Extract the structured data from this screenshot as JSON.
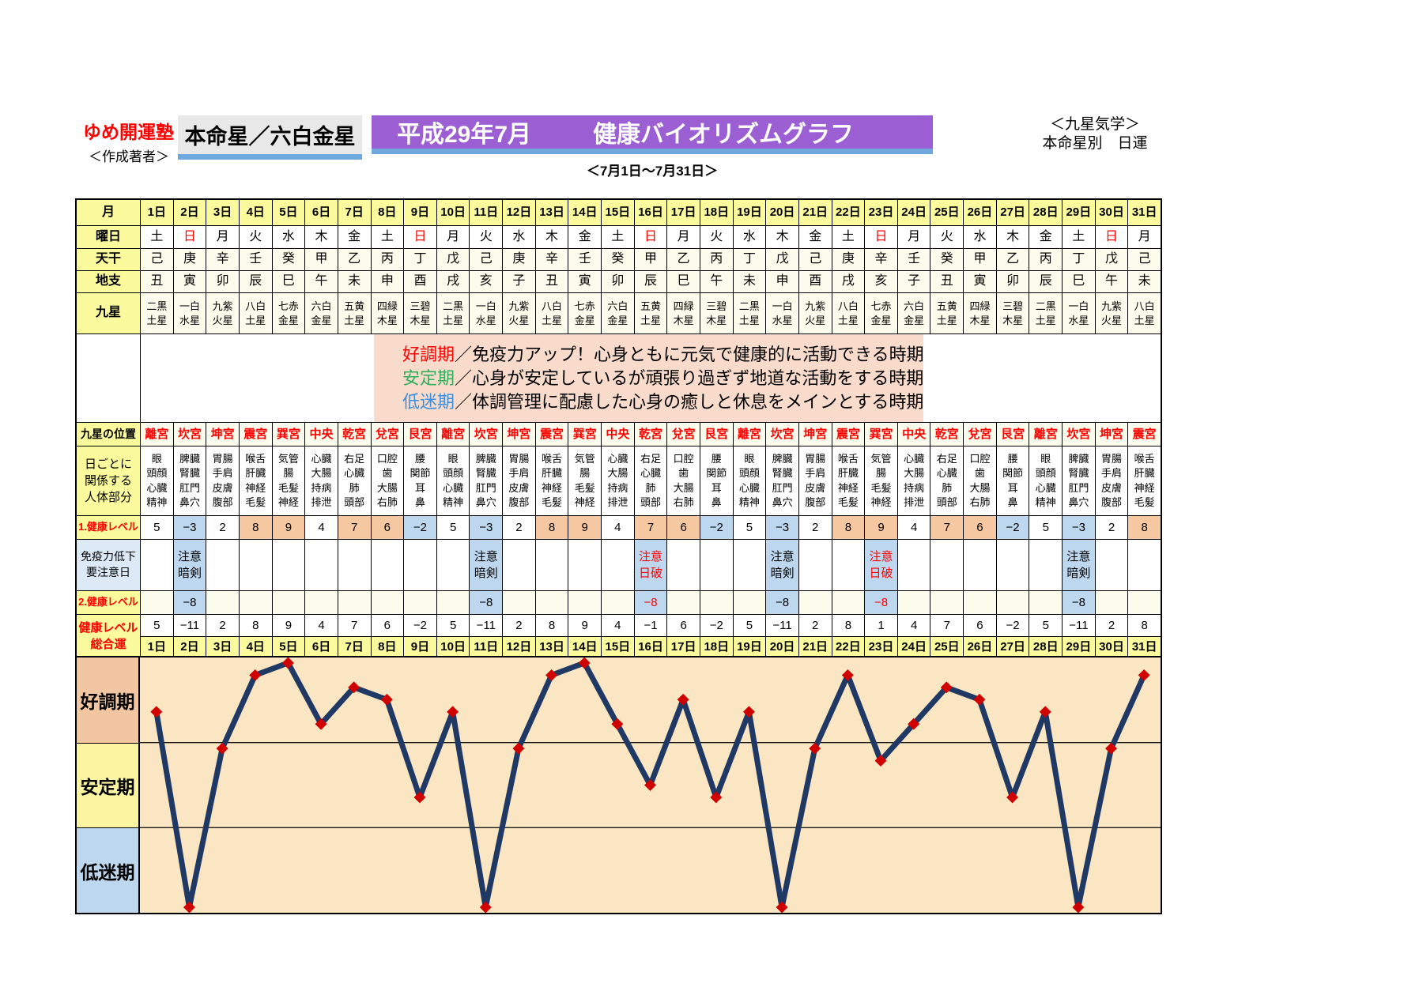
{
  "header": {
    "brand": "ゆめ開運塾",
    "author": "＜作成著者＞",
    "honmeisei": "本命星／六白金星",
    "title_left": "平成29年7月",
    "title_right": "健康バイオリズムグラフ",
    "school_line1": "＜九星気学＞",
    "school_line2": "本命星別　日運",
    "date_range": "＜7月1日～7月31日＞"
  },
  "calendar": {
    "month_label": "月",
    "day_labels": [
      "1日",
      "2日",
      "3日",
      "4日",
      "5日",
      "6日",
      "7日",
      "8日",
      "9日",
      "10日",
      "11日",
      "12日",
      "13日",
      "14日",
      "15日",
      "16日",
      "17日",
      "18日",
      "19日",
      "20日",
      "21日",
      "22日",
      "23日",
      "24日",
      "25日",
      "26日",
      "27日",
      "28日",
      "29日",
      "30日",
      "31日"
    ],
    "weekday": {
      "label": "曜日",
      "sunday_color": "#FF0000",
      "values": [
        "土",
        "日",
        "月",
        "火",
        "水",
        "木",
        "金",
        "土",
        "日",
        "月",
        "火",
        "水",
        "木",
        "金",
        "土",
        "日",
        "月",
        "火",
        "水",
        "木",
        "金",
        "土",
        "日",
        "月",
        "火",
        "水",
        "木",
        "金",
        "土",
        "日",
        "月"
      ]
    },
    "tenkan": {
      "label": "天干",
      "values": [
        "己",
        "庚",
        "辛",
        "壬",
        "癸",
        "甲",
        "乙",
        "丙",
        "丁",
        "戊",
        "己",
        "庚",
        "辛",
        "壬",
        "癸",
        "甲",
        "乙",
        "丙",
        "丁",
        "戊",
        "己",
        "庚",
        "辛",
        "壬",
        "癸",
        "甲",
        "乙",
        "丙",
        "丁",
        "戊",
        "己"
      ]
    },
    "chishi": {
      "label": "地支",
      "values": [
        "丑",
        "寅",
        "卯",
        "辰",
        "巳",
        "午",
        "未",
        "申",
        "酉",
        "戌",
        "亥",
        "子",
        "丑",
        "寅",
        "卯",
        "辰",
        "巳",
        "午",
        "未",
        "申",
        "酉",
        "戌",
        "亥",
        "子",
        "丑",
        "寅",
        "卯",
        "辰",
        "巳",
        "午",
        "未"
      ]
    },
    "kyusei": {
      "label": "九星",
      "values": [
        "二黒土星",
        "一白水星",
        "九紫火星",
        "八白土星",
        "七赤金星",
        "六白金星",
        "五黄土星",
        "四緑木星",
        "三碧木星",
        "二黒土星",
        "一白水星",
        "九紫火星",
        "八白土星",
        "七赤金星",
        "六白金星",
        "五黄土星",
        "四緑木星",
        "三碧木星",
        "二黒土星",
        "一白水星",
        "九紫火星",
        "八白土星",
        "七赤金星",
        "六白金星",
        "五黄土星",
        "四緑木星",
        "三碧木星",
        "二黒土星",
        "一白水星",
        "九紫火星",
        "八白土星"
      ]
    }
  },
  "legend": {
    "items": [
      {
        "term": "好調期",
        "term_color": "#FF0000",
        "desc": "／免疫力アップ！心身ともに元気で健康的に活動できる時期"
      },
      {
        "term": "安定期",
        "term_color": "#2FAF5B",
        "desc": "／心身が安定しているが頑張り過ぎず地道な活動をする時期"
      },
      {
        "term": "低迷期",
        "term_color": "#3E8EDE",
        "desc": "／体調管理に配慮した心身の癒しと休息をメインとする時期"
      }
    ]
  },
  "positions": {
    "label": "九星の位置",
    "text_color": "#FF0000",
    "values": [
      "離宮",
      "坎宮",
      "坤宮",
      "震宮",
      "巽宮",
      "中央",
      "乾宮",
      "兌宮",
      "艮宮",
      "離宮",
      "坎宮",
      "坤宮",
      "震宮",
      "巽宮",
      "中央",
      "乾宮",
      "兌宮",
      "艮宮",
      "離宮",
      "坎宮",
      "坤宮",
      "震宮",
      "巽宮",
      "中央",
      "乾宮",
      "兌宮",
      "艮宮",
      "離宮",
      "坎宮",
      "坤宮",
      "震宮"
    ]
  },
  "body_parts": {
    "label_lines": [
      "日ごとに",
      "関係する",
      "人体部分"
    ],
    "by_palace": {
      "離宮": [
        "眼",
        "頭顔",
        "心臓",
        "精神"
      ],
      "坎宮": [
        "脾臓",
        "腎臓",
        "肛門",
        "鼻穴"
      ],
      "坤宮": [
        "胃腸",
        "手肩",
        "皮膚",
        "腹部"
      ],
      "震宮": [
        "喉舌",
        "肝臓",
        "神経",
        "毛髪"
      ],
      "巽宮": [
        "気管",
        "腸",
        "毛髪",
        "神経"
      ],
      "中央": [
        "心臓",
        "大腸",
        "持病",
        "排泄"
      ],
      "乾宮": [
        "右足",
        "心臓",
        "肺",
        "頭部"
      ],
      "兌宮": [
        "口腔",
        "歯",
        "大腸",
        "右肺"
      ],
      "艮宮": [
        "腰",
        "関節",
        "耳",
        "鼻"
      ]
    }
  },
  "health1": {
    "label": "1.健康レベル",
    "by_palace": {
      "離宮": 5,
      "坎宮": -3,
      "坤宮": 2,
      "震宮": 8,
      "巽宮": 9,
      "中央": 4,
      "乾宮": 7,
      "兌宮": 6,
      "艮宮": -2
    }
  },
  "caution": {
    "label_lines": [
      "免疫力低下",
      "要注意日"
    ],
    "prefix": "注意",
    "days": {
      "2": "暗剣",
      "11": "暗剣",
      "16": "日破",
      "20": "暗剣",
      "23": "日破",
      "29": "暗剣"
    }
  },
  "health2": {
    "label": "2.健康レベル",
    "value": -8
  },
  "total": {
    "label_lines": [
      "健康レベル",
      "総合運"
    ],
    "values": [
      5,
      -11,
      2,
      8,
      9,
      4,
      7,
      6,
      -2,
      5,
      -11,
      2,
      8,
      9,
      4,
      -1,
      6,
      -2,
      5,
      -11,
      2,
      8,
      1,
      4,
      7,
      6,
      -2,
      5,
      -11,
      2,
      8
    ]
  },
  "chart_data": {
    "type": "line",
    "title": "健康バイオリズムグラフ（健康レベル総合運）",
    "x_labels": [
      "1日",
      "2日",
      "3日",
      "4日",
      "5日",
      "6日",
      "7日",
      "8日",
      "9日",
      "10日",
      "11日",
      "12日",
      "13日",
      "14日",
      "15日",
      "16日",
      "17日",
      "18日",
      "19日",
      "20日",
      "21日",
      "22日",
      "23日",
      "24日",
      "25日",
      "26日",
      "27日",
      "28日",
      "29日",
      "30日",
      "31日"
    ],
    "values": [
      5,
      -11,
      2,
      8,
      9,
      4,
      7,
      6,
      -2,
      5,
      -11,
      2,
      8,
      9,
      4,
      -1,
      6,
      -2,
      5,
      -11,
      2,
      8,
      1,
      4,
      7,
      6,
      -2,
      5,
      -11,
      2,
      8
    ],
    "ylim": [
      -11,
      9
    ],
    "grid": "band-boundaries-only",
    "legend_position": "left",
    "bands": [
      {
        "label": "好調期",
        "bg": "#F3C6A2",
        "approx_value_range": [
          2.5,
          9
        ]
      },
      {
        "label": "安定期",
        "bg": "#FBF4A0",
        "approx_value_range": [
          -4.5,
          2.5
        ]
      },
      {
        "label": "低迷期",
        "bg": "#BDD7EE",
        "approx_value_range": [
          -11,
          -4.5
        ]
      }
    ],
    "line_color": "#1F3864",
    "marker": {
      "shape": "diamond",
      "color": "#D10000"
    },
    "plot_bg": "#FAE6C2"
  },
  "colors": {
    "header_yellow": "#FBFB9E",
    "ivory": "#FCFCEC",
    "salmon_cell": "#F6C8A2",
    "blue_cell": "#BDD7EE",
    "caution_label_bg": "#DCE9F7",
    "legend_pink": "#F8DBCB",
    "banner_purple": "#9C5FD3",
    "underline_blue": "#6FA8DC",
    "honmei_gray": "#E8E8E8",
    "accent_red": "#FF0000"
  }
}
